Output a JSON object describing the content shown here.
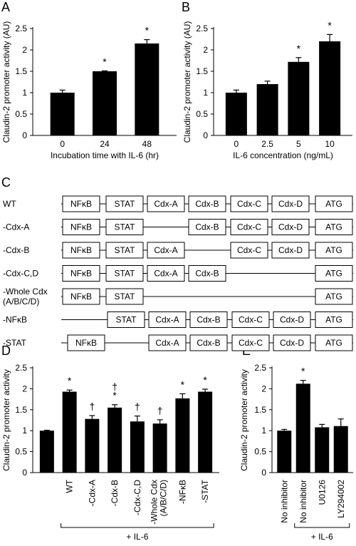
{
  "panels": {
    "A": "A",
    "B": "B",
    "C": "C",
    "D": "D",
    "E": "E"
  },
  "chart_data": [
    {
      "panel": "A",
      "type": "bar",
      "categories": [
        "0",
        "24",
        "48"
      ],
      "values": [
        1.0,
        1.5,
        2.15
      ],
      "errors": [
        0.06,
        0.01,
        0.09
      ],
      "significance": [
        "",
        "*",
        "*"
      ],
      "ylabel": "Claudin-2 promoter activity (AU)",
      "xlabel": "Incubation time with IL-6 (hr)",
      "ylim": [
        0,
        2.5
      ],
      "yticks": [
        "0",
        "0.5",
        "1",
        "1.5",
        "2",
        "2.5"
      ]
    },
    {
      "panel": "B",
      "type": "bar",
      "categories": [
        "0",
        "2.5",
        "5",
        "10"
      ],
      "values": [
        1.0,
        1.2,
        1.72,
        2.2
      ],
      "errors": [
        0.06,
        0.07,
        0.1,
        0.16
      ],
      "significance": [
        "",
        "",
        "*",
        "*"
      ],
      "ylabel": "Claudin-2 promoter activity (AU)",
      "xlabel": "IL-6 concentration (ng/mL)",
      "ylim": [
        0,
        2.5
      ],
      "yticks": [
        "0",
        "0.5",
        "1",
        "1.5",
        "2",
        "2.5"
      ]
    },
    {
      "panel": "D",
      "type": "bar",
      "categories": [
        "",
        "WT",
        "-Cdx-A",
        "-Cdx-B",
        "-Cdx-C,D",
        "-Whole Cdx (A/B/C/D)",
        "-NFκB",
        "-STAT"
      ],
      "values": [
        1.0,
        1.93,
        1.28,
        1.55,
        1.22,
        1.17,
        1.77,
        1.93
      ],
      "errors": [
        0.01,
        0.04,
        0.08,
        0.07,
        0.13,
        0.09,
        0.11,
        0.06
      ],
      "significance": [
        "",
        "*",
        "†",
        "†*",
        "†",
        "†",
        "*",
        "*"
      ],
      "ylabel": "Claudin-2 promoter activity",
      "bracket_label": "+ IL-6",
      "ylim": [
        0,
        2.5
      ],
      "yticks": [
        "0",
        "0.5",
        "1",
        "1.5",
        "2",
        "2.5"
      ]
    },
    {
      "panel": "E",
      "type": "bar",
      "categories": [
        "No inhibitor",
        "No inhibitor",
        "U0126",
        "LY294002"
      ],
      "values": [
        1.0,
        2.12,
        1.08,
        1.11
      ],
      "errors": [
        0.03,
        0.08,
        0.07,
        0.17
      ],
      "significance": [
        "",
        "*",
        "",
        ""
      ],
      "ylabel": "Claudin-2 promoter activity",
      "bracket_label": "+ IL-6",
      "ylim": [
        0,
        2.5
      ],
      "yticks": [
        "0",
        "0.5",
        "1",
        "1.5",
        "2",
        "2.5"
      ]
    }
  ],
  "constructs": {
    "rows": [
      {
        "label": "WT",
        "boxes": [
          "NFκB",
          "STAT",
          "Cdx-A",
          "Cdx-B",
          "Cdx-C",
          "Cdx-D",
          "ATG"
        ]
      },
      {
        "label": "-Cdx-A",
        "boxes": [
          "NFκB",
          "STAT",
          "",
          "Cdx-B",
          "Cdx-C",
          "Cdx-D",
          "ATG"
        ]
      },
      {
        "label": "-Cdx-B",
        "boxes": [
          "NFκB",
          "STAT",
          "Cdx-A",
          "",
          "Cdx-C",
          "Cdx-D",
          "ATG"
        ]
      },
      {
        "label": "-Cdx-C,D",
        "boxes": [
          "NFκB",
          "STAT",
          "Cdx-A",
          "Cdx-B",
          "",
          "",
          "ATG"
        ]
      },
      {
        "label": "-Whole Cdx",
        "sublabel": "(A/B/C/D)",
        "boxes": [
          "NFκB",
          "STAT",
          "",
          "",
          "",
          "",
          "ATG"
        ]
      },
      {
        "label": "-NFκB",
        "boxes": [
          "",
          "STAT",
          "Cdx-A",
          "Cdx-B",
          "Cdx-C",
          "Cdx-D",
          "ATG"
        ],
        "shift": true
      },
      {
        "label": "-STAT",
        "boxes": [
          "NFκB",
          "",
          "Cdx-A",
          "Cdx-B",
          "Cdx-C",
          "Cdx-D",
          "ATG"
        ],
        "shift": true
      }
    ]
  }
}
